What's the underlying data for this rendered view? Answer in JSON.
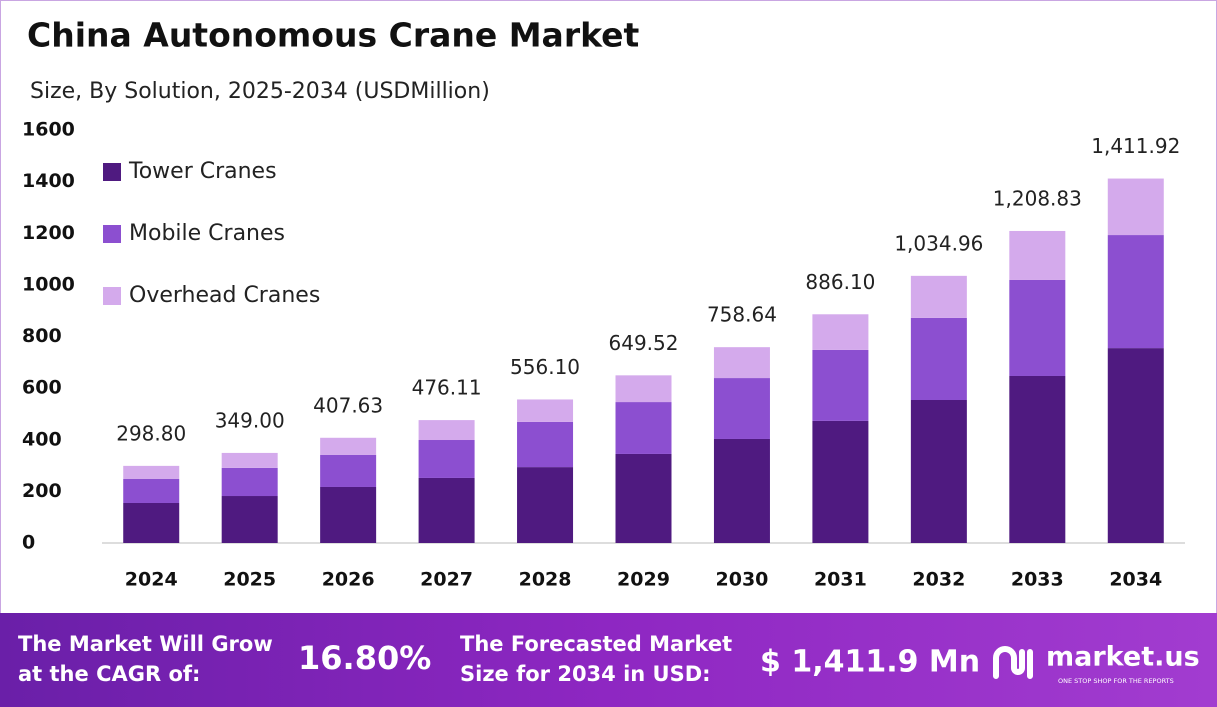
{
  "chart_data": {
    "type": "stacked-bar",
    "title": "China Autonomous Crane Market",
    "subtitle": "Size, By Solution, 2025-2034 (USDMillion)",
    "categories": [
      "2024",
      "2025",
      "2026",
      "2027",
      "2028",
      "2029",
      "2030",
      "2031",
      "2032",
      "2033",
      "2034"
    ],
    "series": [
      {
        "name": "Tower Cranes",
        "color": "#4f1a80",
        "values": [
          155,
          182,
          217,
          252,
          294,
          345,
          403,
          473,
          554,
          647,
          755
        ]
      },
      {
        "name": "Mobile Cranes",
        "color": "#8c4fd0",
        "values": [
          93,
          109,
          124,
          147,
          175,
          201,
          236,
          275,
          318,
          372,
          438
        ]
      },
      {
        "name": "Overhead Cranes",
        "color": "#d4aaec",
        "values": [
          50.8,
          58,
          66.63,
          77.11,
          87.1,
          103.52,
          119.64,
          138.1,
          162.96,
          189.83,
          218.92
        ]
      }
    ],
    "totals": [
      298.8,
      349,
      407.63,
      476.11,
      556.1,
      649.52,
      758.64,
      886.1,
      1034.96,
      1208.83,
      1411.92
    ],
    "total_labels": [
      "298.80",
      "349.00",
      "407.63",
      "476.11",
      "556.10",
      "649.52",
      "758.64",
      "886.10",
      "1,034.96",
      "1,208.83",
      "1,411.92"
    ],
    "ylim": [
      0,
      1600
    ],
    "yticks": [
      0,
      200,
      400,
      600,
      800,
      1000,
      1200,
      1400,
      1600
    ],
    "legend": "top-left",
    "grid": false
  },
  "footer": {
    "cagr_text": [
      "The Market Will Grow",
      "at the CAGR of:"
    ],
    "cagr_value": "16.80%",
    "forecast_text": [
      "The Forecasted Market",
      "Size for 2034 in USD:"
    ],
    "forecast_value": "$ 1,411.9 Mn",
    "brand": "market.us",
    "tagline": "ONE STOP SHOP FOR THE REPORTS"
  }
}
